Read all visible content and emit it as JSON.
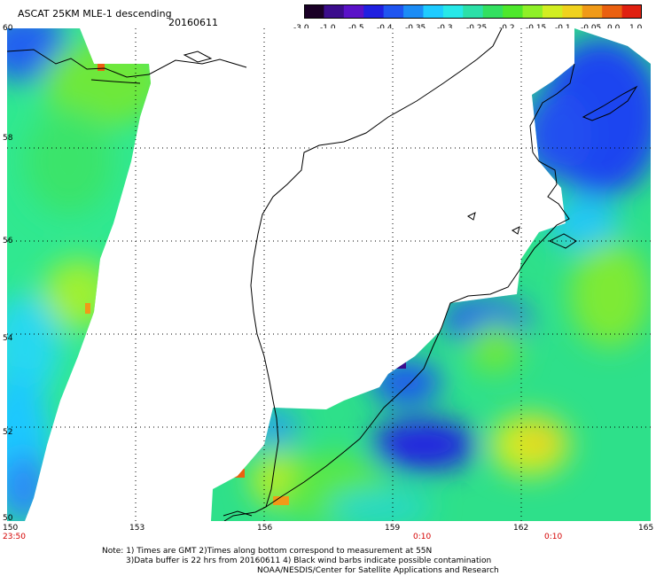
{
  "header": {
    "title": "ASCAT 25KM MLE-1 descending",
    "date": "20160611"
  },
  "colorbar": {
    "labels": [
      "-3.0",
      "-1.0",
      "-0.5",
      "-0.4",
      "-0.35",
      "-0.3",
      "-0.25",
      "-0.2",
      "-0.15",
      "-0.1",
      "-0.05",
      "0.0",
      "1.0"
    ],
    "colors": [
      "#1a0026",
      "#3b0d8c",
      "#5a12c8",
      "#2020e0",
      "#1f55f0",
      "#1c8cf5",
      "#1ecbff",
      "#27e8e8",
      "#2ce0a8",
      "#33e060",
      "#4ee82c",
      "#8ff028",
      "#d2ee22",
      "#f0d21e",
      "#f09a18",
      "#ea6010",
      "#e02010"
    ]
  },
  "map": {
    "x_axis": {
      "labels": [
        "150",
        "153",
        "156",
        "159",
        "162",
        "165"
      ]
    },
    "y_axis": {
      "labels": [
        "60",
        "58",
        "56",
        "54",
        "52",
        "50"
      ]
    },
    "times": [
      "23:50",
      "0:10",
      "0:10"
    ]
  },
  "notes": {
    "line1": "Note: 1) Times are GMT 2)Times along bottom correspond to measurement at 55N",
    "line2": "3)Data buffer is 22 hrs from 20160611 4) Black wind barbs indicate possible contamination",
    "line3": "NOAA/NESDIS/Center for Satellite Applications and Research"
  }
}
